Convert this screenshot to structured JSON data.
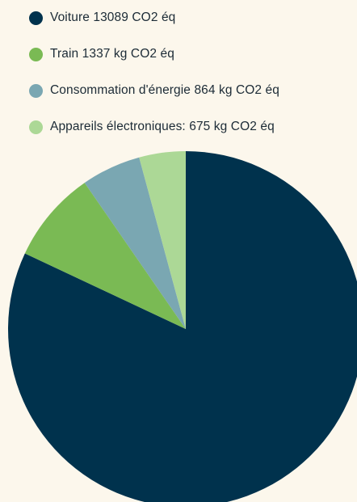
{
  "chart_data": {
    "type": "pie",
    "title": "",
    "legend_position": "top-left",
    "slices": [
      {
        "label": "Voiture 13089 CO2 éq",
        "value": 13089,
        "color": "#00324d"
      },
      {
        "label": "Train 1337 kg CO2 éq",
        "value": 1337,
        "color": "#7aba54"
      },
      {
        "label": "Consommation d'énergie 864 kg CO2 éq",
        "value": 864,
        "color": "#7aa7b2"
      },
      {
        "label": "Appareils électroniques: 675 kg CO2 éq",
        "value": 675,
        "color": "#acd896"
      }
    ]
  }
}
